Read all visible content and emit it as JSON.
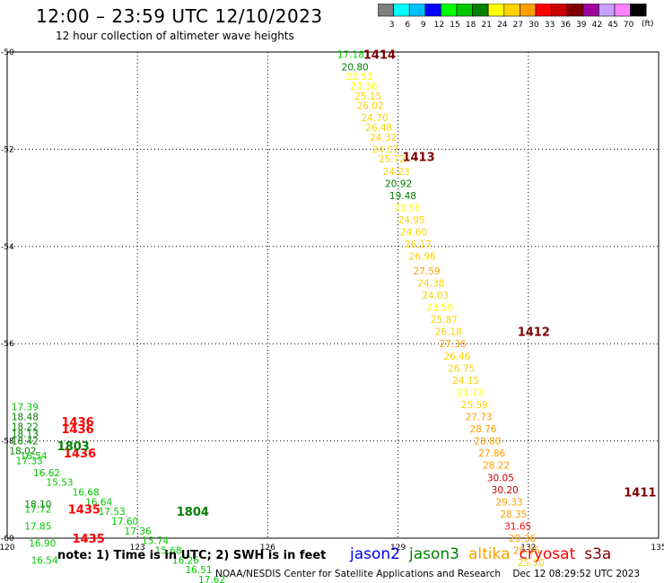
{
  "header": {
    "title": "12:00 – 23:59 UTC 12/10/2023",
    "subtitle": "12 hour collection of altimeter wave heights"
  },
  "color_scale": {
    "unit": "(ft)",
    "bins": [
      {
        "label": "3",
        "color": "#7f7f7f"
      },
      {
        "label": "6",
        "color": "#00ffff"
      },
      {
        "label": "9",
        "color": "#00bfff"
      },
      {
        "label": "12",
        "color": "#0000ff"
      },
      {
        "label": "15",
        "color": "#00ff00"
      },
      {
        "label": "18",
        "color": "#00c800"
      },
      {
        "label": "21",
        "color": "#008000"
      },
      {
        "label": "24",
        "color": "#ffff00"
      },
      {
        "label": "27",
        "color": "#ffd200"
      },
      {
        "label": "30",
        "color": "#ffa000"
      },
      {
        "label": "33",
        "color": "#ff0000"
      },
      {
        "label": "36",
        "color": "#c80000"
      },
      {
        "label": "39",
        "color": "#800000"
      },
      {
        "label": "42",
        "color": "#a000a0"
      },
      {
        "label": "45",
        "color": "#c8a0ff"
      },
      {
        "label": "70",
        "color": "#ff80ff"
      },
      {
        "label": "",
        "color": "#000000"
      }
    ]
  },
  "chart_data": {
    "type": "scatter",
    "title": "12:00 – 23:59 UTC 12/10/2023",
    "xlim": [
      120,
      135
    ],
    "ylim": [
      -60,
      -50
    ],
    "x_ticks": [
      "120",
      "123",
      "126",
      "129",
      "132",
      "135"
    ],
    "y_ticks": [
      "-50",
      "-52",
      "-54",
      "-56",
      "-58",
      "-60"
    ],
    "grid": true,
    "tracks": [
      {
        "name": "1414",
        "x": 128.2,
        "y": -50.05
      },
      {
        "name": "1413",
        "x": 129.1,
        "y": -52.15
      },
      {
        "name": "1412",
        "x": 131.75,
        "y": -55.75
      },
      {
        "name": "1411",
        "x": 134.2,
        "y": -59.05
      },
      {
        "name": "1436",
        "x": 121.25,
        "y": -57.6
      },
      {
        "name": "1436",
        "x": 121.25,
        "y": -57.75
      },
      {
        "name": "1436",
        "x": 121.3,
        "y": -58.25
      },
      {
        "name": "1803",
        "x": 121.15,
        "y": -58.1
      },
      {
        "name": "1804",
        "x": 123.9,
        "y": -59.45
      },
      {
        "name": "1435",
        "x": 121.4,
        "y": -59.4
      },
      {
        "name": "1435",
        "x": 121.5,
        "y": -60.0
      }
    ],
    "series": [
      {
        "points": [
          {
            "x": 127.6,
            "y": -50.05,
            "v": "17.18",
            "c": "#00c800"
          },
          {
            "x": 127.7,
            "y": -50.3,
            "v": "20.80",
            "c": "#008000"
          },
          {
            "x": 127.8,
            "y": -50.5,
            "v": "22.51",
            "c": "#ffff00"
          },
          {
            "x": 127.9,
            "y": -50.7,
            "v": "23.36",
            "c": "#ffff00"
          },
          {
            "x": 128.0,
            "y": -50.9,
            "v": "25.15",
            "c": "#ffd200"
          },
          {
            "x": 128.05,
            "y": -51.1,
            "v": "26.02",
            "c": "#ffd200"
          },
          {
            "x": 128.15,
            "y": -51.35,
            "v": "24.70",
            "c": "#ffd200"
          },
          {
            "x": 128.25,
            "y": -51.55,
            "v": "26.48",
            "c": "#ffd200"
          },
          {
            "x": 128.35,
            "y": -51.75,
            "v": "24.32",
            "c": "#ffd200"
          },
          {
            "x": 128.4,
            "y": -52.0,
            "v": "24.07",
            "c": "#ffd200"
          },
          {
            "x": 128.55,
            "y": -52.2,
            "v": "25.72",
            "c": "#ffd200"
          },
          {
            "x": 128.65,
            "y": -52.45,
            "v": "24.23",
            "c": "#ffd200"
          },
          {
            "x": 128.7,
            "y": -52.7,
            "v": "20.92",
            "c": "#008000"
          },
          {
            "x": 128.8,
            "y": -52.95,
            "v": "19.48",
            "c": "#008000"
          },
          {
            "x": 128.9,
            "y": -53.2,
            "v": "23.56",
            "c": "#ffff00"
          },
          {
            "x": 129.0,
            "y": -53.45,
            "v": "24.95",
            "c": "#ffd200"
          },
          {
            "x": 129.05,
            "y": -53.7,
            "v": "24.60",
            "c": "#ffd200"
          },
          {
            "x": 129.15,
            "y": -53.95,
            "v": "26.17",
            "c": "#ffd200"
          },
          {
            "x": 129.25,
            "y": -54.2,
            "v": "26.96",
            "c": "#ffd200"
          },
          {
            "x": 129.35,
            "y": -54.5,
            "v": "27.59",
            "c": "#ffa000"
          },
          {
            "x": 129.45,
            "y": -54.75,
            "v": "24.38",
            "c": "#ffd200"
          },
          {
            "x": 129.55,
            "y": -55.0,
            "v": "24.03",
            "c": "#ffd200"
          },
          {
            "x": 129.65,
            "y": -55.25,
            "v": "23.50",
            "c": "#ffff00"
          },
          {
            "x": 129.75,
            "y": -55.5,
            "v": "25.87",
            "c": "#ffd200"
          },
          {
            "x": 129.85,
            "y": -55.75,
            "v": "26.18",
            "c": "#ffd200"
          },
          {
            "x": 129.95,
            "y": -56.0,
            "v": "27.36",
            "c": "#ffa000"
          },
          {
            "x": 130.05,
            "y": -56.25,
            "v": "26.46",
            "c": "#ffd200"
          },
          {
            "x": 130.15,
            "y": -56.5,
            "v": "26.75",
            "c": "#ffd200"
          },
          {
            "x": 130.25,
            "y": -56.75,
            "v": "24.15",
            "c": "#ffd200"
          },
          {
            "x": 130.35,
            "y": -57.0,
            "v": "23.73",
            "c": "#ffff00"
          },
          {
            "x": 130.45,
            "y": -57.25,
            "v": "25.59",
            "c": "#ffd200"
          },
          {
            "x": 130.55,
            "y": -57.5,
            "v": "27.73",
            "c": "#ffa000"
          },
          {
            "x": 130.65,
            "y": -57.75,
            "v": "28.76",
            "c": "#ffa000"
          },
          {
            "x": 130.75,
            "y": -58.0,
            "v": "28.80",
            "c": "#ffa000"
          },
          {
            "x": 130.85,
            "y": -58.25,
            "v": "27.86",
            "c": "#ffa000"
          },
          {
            "x": 130.95,
            "y": -58.5,
            "v": "28.22",
            "c": "#ffa000"
          },
          {
            "x": 131.05,
            "y": -58.75,
            "v": "30.05",
            "c": "#c80000"
          },
          {
            "x": 131.15,
            "y": -59.0,
            "v": "30.20",
            "c": "#c80000"
          },
          {
            "x": 131.25,
            "y": -59.25,
            "v": "29.33",
            "c": "#ffa000"
          },
          {
            "x": 131.35,
            "y": -59.5,
            "v": "28.35",
            "c": "#ffa000"
          },
          {
            "x": 131.45,
            "y": -59.75,
            "v": "31.65",
            "c": "#ff0000"
          },
          {
            "x": 131.55,
            "y": -60.0,
            "v": "29.36",
            "c": "#ffa000"
          },
          {
            "x": 131.65,
            "y": -60.25,
            "v": "29.05",
            "c": "#ffa000"
          },
          {
            "x": 131.75,
            "y": -60.5,
            "v": "25.50",
            "c": "#ffd200"
          }
        ]
      },
      {
        "points": [
          {
            "x": 120.1,
            "y": -57.3,
            "v": "17.39",
            "c": "#00c800"
          },
          {
            "x": 120.1,
            "y": -57.5,
            "v": "18.48",
            "c": "#008000"
          },
          {
            "x": 120.1,
            "y": -57.7,
            "v": "18.22",
            "c": "#008000"
          },
          {
            "x": 120.1,
            "y": -57.85,
            "v": "18.13",
            "c": "#008000"
          },
          {
            "x": 120.1,
            "y": -58.0,
            "v": "18.42",
            "c": "#008000"
          },
          {
            "x": 120.05,
            "y": -58.2,
            "v": "18.02",
            "c": "#008000"
          },
          {
            "x": 120.3,
            "y": -58.3,
            "v": "16.54",
            "c": "#00c800"
          },
          {
            "x": 120.2,
            "y": -58.4,
            "v": "17.33",
            "c": "#00c800"
          },
          {
            "x": 120.6,
            "y": -58.65,
            "v": "16.62",
            "c": "#00c800"
          },
          {
            "x": 120.9,
            "y": -58.85,
            "v": "15.53",
            "c": "#00c800"
          },
          {
            "x": 121.5,
            "y": -59.05,
            "v": "16.68",
            "c": "#00c800"
          },
          {
            "x": 121.8,
            "y": -59.25,
            "v": "16.64",
            "c": "#00c800"
          },
          {
            "x": 122.1,
            "y": -59.45,
            "v": "17.53",
            "c": "#00c800"
          },
          {
            "x": 122.4,
            "y": -59.65,
            "v": "17.60",
            "c": "#00c800"
          },
          {
            "x": 122.7,
            "y": -59.85,
            "v": "17.36",
            "c": "#00c800"
          },
          {
            "x": 123.1,
            "y": -60.05,
            "v": "15.74",
            "c": "#00c800"
          },
          {
            "x": 123.4,
            "y": -60.25,
            "v": "15.68",
            "c": "#00c800"
          },
          {
            "x": 123.8,
            "y": -60.45,
            "v": "16.26",
            "c": "#00c800"
          },
          {
            "x": 124.1,
            "y": -60.65,
            "v": "16.51",
            "c": "#00c800"
          },
          {
            "x": 124.4,
            "y": -60.85,
            "v": "17.62",
            "c": "#00c800"
          }
        ]
      },
      {
        "points": [
          {
            "x": 120.4,
            "y": -59.3,
            "v": "18.10",
            "c": "#008000"
          },
          {
            "x": 120.4,
            "y": -59.4,
            "v": "17.72",
            "c": "#00c800"
          },
          {
            "x": 120.4,
            "y": -59.75,
            "v": "17.85",
            "c": "#00c800"
          },
          {
            "x": 120.5,
            "y": -60.1,
            "v": "16.90",
            "c": "#00c800"
          },
          {
            "x": 120.55,
            "y": -60.45,
            "v": "16.54",
            "c": "#00c800"
          }
        ]
      }
    ]
  },
  "footer": {
    "note": "note: 1) Time is in UTC; 2) SWH is in feet",
    "legend": [
      {
        "name": "jason2",
        "color": "#0000ff"
      },
      {
        "name": "jason3",
        "color": "#008000"
      },
      {
        "name": "altika",
        "color": "#ffa000"
      },
      {
        "name": "cryosat",
        "color": "#ff0000"
      },
      {
        "name": "s3a",
        "color": "#800000"
      }
    ],
    "credit": "NOAA/NESDIS Center for Satellite Applications and Research    Dec 12 08:29:52 UTC 2023"
  }
}
